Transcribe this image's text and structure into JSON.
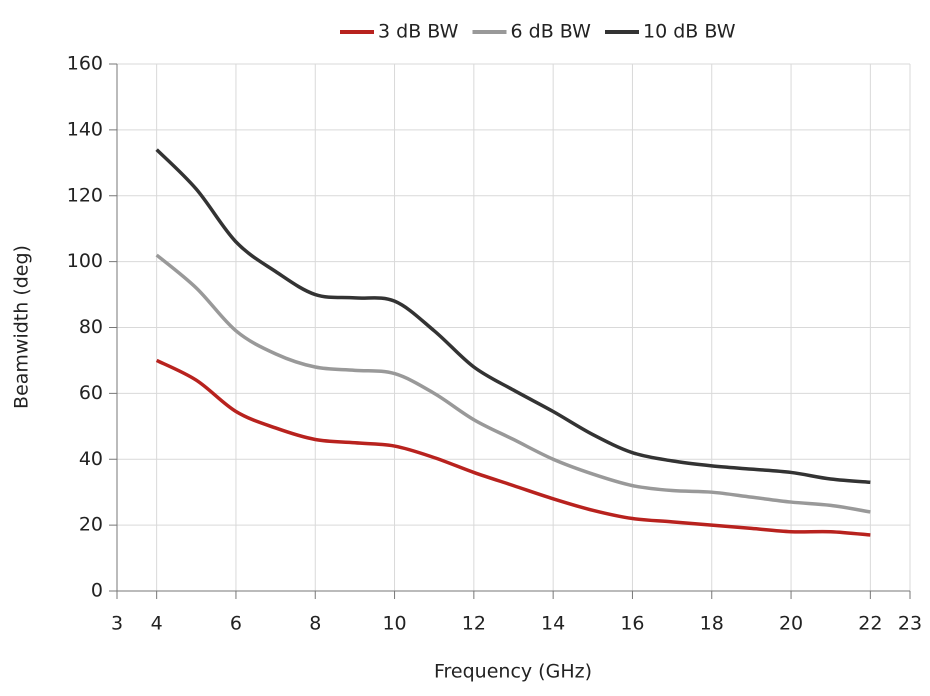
{
  "chart_data": {
    "type": "line",
    "x_label": "Frequency (GHz)",
    "y_label": "Beamwidth (deg)",
    "x": [
      4,
      5,
      6,
      7,
      8,
      9,
      10,
      11,
      12,
      13,
      14,
      15,
      16,
      17,
      18,
      19,
      20,
      21,
      22
    ],
    "series": [
      {
        "name": "3 dB BW",
        "color": "#b8221e",
        "values": [
          70,
          64,
          54.5,
          49.5,
          46,
          45,
          44,
          40.5,
          36,
          32,
          28,
          24.5,
          22,
          21,
          20,
          19,
          18,
          18,
          17
        ]
      },
      {
        "name": "6 dB BW",
        "color": "#999999",
        "values": [
          102,
          92,
          79,
          72,
          68,
          67,
          66,
          60,
          52,
          46,
          40,
          35.5,
          32,
          30.5,
          30,
          28.5,
          27,
          26,
          24
        ]
      },
      {
        "name": "10 dB BW",
        "color": "#333333",
        "values": [
          134,
          122,
          106,
          97,
          90,
          89,
          88,
          79,
          68,
          61,
          54.5,
          47.5,
          42,
          39.5,
          38,
          37,
          36,
          34,
          33
        ]
      }
    ],
    "xlim": [
      3,
      23
    ],
    "xticks": [
      3,
      4,
      6,
      8,
      10,
      12,
      14,
      16,
      18,
      20,
      22,
      23
    ],
    "ylim": [
      0,
      160
    ],
    "yticks": [
      0,
      20,
      40,
      60,
      80,
      100,
      120,
      140,
      160
    ],
    "grid": true,
    "legend": "top"
  }
}
